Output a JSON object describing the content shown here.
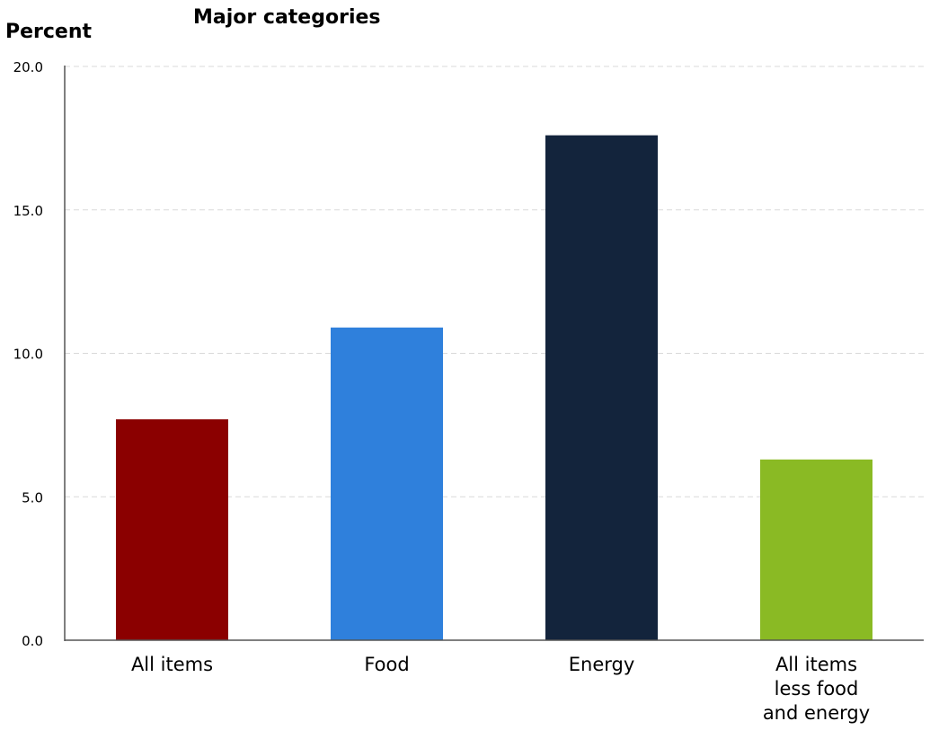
{
  "chart_data": {
    "type": "bar",
    "title": "Major categories",
    "ylabel": "Percent",
    "xlabel": "",
    "ylim": [
      0,
      20
    ],
    "yticks": [
      "0.0",
      "5.0",
      "10.0",
      "15.0",
      "20.0"
    ],
    "ytick_values": [
      0,
      5,
      10,
      15,
      20
    ],
    "grid": true,
    "categories": [
      [
        "All items"
      ],
      [
        "Food"
      ],
      [
        "Energy"
      ],
      [
        "All items",
        "less food",
        "and energy"
      ]
    ],
    "values": [
      7.7,
      10.9,
      17.6,
      6.3
    ],
    "colors": [
      "#8b0000",
      "#2f80dc",
      "#13243c",
      "#8aba24"
    ]
  }
}
